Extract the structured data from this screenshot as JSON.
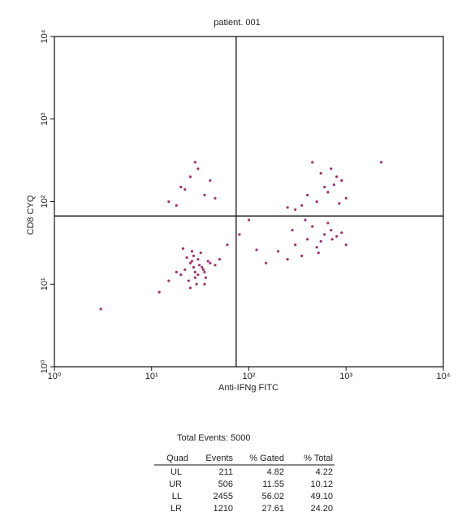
{
  "chart_data": {
    "type": "scatter",
    "title": "patient. 001",
    "xlabel": "Anti-IFNg FITC",
    "ylabel": "CD8 CYQ",
    "xscale": "log",
    "yscale": "log",
    "xlim": [
      1,
      10000
    ],
    "ylim": [
      1,
      10000
    ],
    "xticks": [
      {
        "value": 1,
        "label": "10⁰"
      },
      {
        "value": 10,
        "label": "10¹"
      },
      {
        "value": 100,
        "label": "10²"
      },
      {
        "value": 1000,
        "label": "10³"
      },
      {
        "value": 10000,
        "label": "10⁴"
      }
    ],
    "yticks": [
      {
        "value": 1,
        "label": "10⁰"
      },
      {
        "value": 10,
        "label": "10¹"
      },
      {
        "value": 100,
        "label": "10²"
      },
      {
        "value": 1000,
        "label": "10³"
      },
      {
        "value": 10000,
        "label": "10⁴"
      }
    ],
    "quadrant_x": 74,
    "quadrant_y": 67,
    "color": "#a3306e",
    "x": [
      22,
      25,
      28,
      30,
      33,
      35,
      27,
      24,
      31,
      38,
      20,
      26,
      29,
      34,
      23,
      36,
      40,
      18,
      32,
      27,
      25,
      30,
      45,
      15,
      12,
      50,
      21,
      28,
      35,
      26,
      200,
      300,
      400,
      500,
      600,
      700,
      800,
      350,
      450,
      550,
      250,
      650,
      900,
      150,
      120,
      1000,
      380,
      520,
      720,
      280,
      300,
      400,
      600,
      800,
      500,
      700,
      900,
      350,
      450,
      650,
      250,
      1000,
      550,
      750,
      850,
      15,
      20,
      25,
      30,
      35,
      40,
      18,
      28,
      45,
      22,
      80,
      100,
      60,
      3,
      2300
    ],
    "values": [
      15,
      18,
      12,
      20,
      16,
      14,
      22,
      11,
      17,
      19,
      13,
      25,
      10,
      15,
      21,
      12,
      18,
      14,
      24,
      16,
      9,
      13,
      17,
      11,
      8,
      20,
      27,
      14,
      10,
      19,
      25,
      30,
      35,
      28,
      40,
      45,
      38,
      22,
      50,
      33,
      20,
      55,
      42,
      18,
      26,
      30,
      60,
      24,
      35,
      45,
      80,
      120,
      150,
      200,
      100,
      250,
      180,
      90,
      300,
      130,
      85,
      110,
      220,
      160,
      95,
      100,
      150,
      200,
      250,
      120,
      180,
      90,
      300,
      110,
      140,
      40,
      60,
      30,
      5,
      300
    ]
  },
  "table": {
    "total": "Total Events: 5000",
    "header": [
      "Quad",
      "Events",
      "% Gated",
      "% Total"
    ],
    "rows": [
      [
        "UL",
        "211",
        "4.82",
        "4.22"
      ],
      [
        "UR",
        "506",
        "11.55",
        "10.12"
      ],
      [
        "LL",
        "2455",
        "56.02",
        "49.10"
      ],
      [
        "LR",
        "1210",
        "27.61",
        "24.20"
      ]
    ]
  }
}
